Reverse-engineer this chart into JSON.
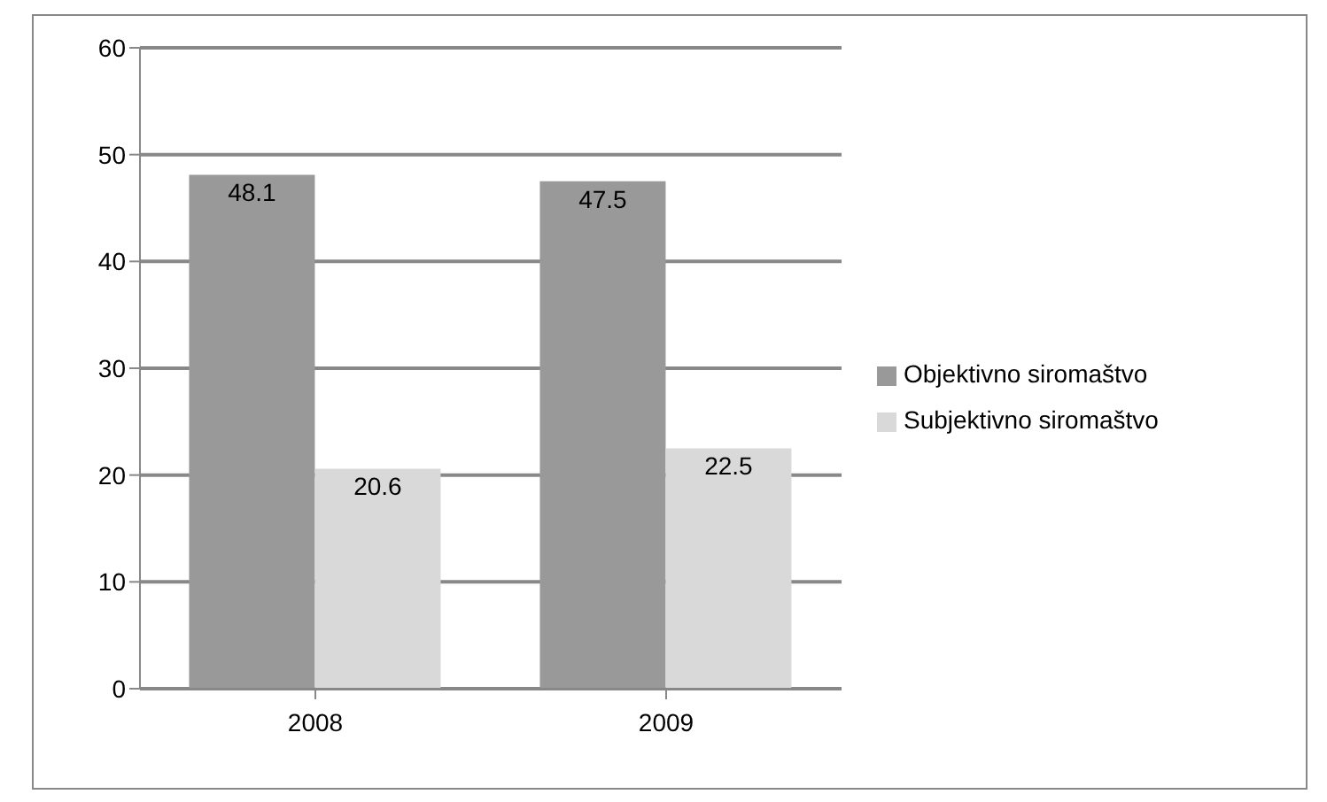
{
  "chart_data": {
    "type": "bar",
    "categories": [
      "2008",
      "2009"
    ],
    "series": [
      {
        "name": "Objektivno siromaštvo",
        "color": "#999999",
        "values": [
          48.1,
          47.5
        ]
      },
      {
        "name": "Subjektivno siromaštvo",
        "color": "#d9d9d9",
        "values": [
          20.6,
          22.5
        ]
      }
    ],
    "ylim": [
      0,
      60
    ],
    "yticks": [
      0,
      10,
      20,
      30,
      40,
      50,
      60
    ],
    "grid": "y",
    "legend": "right",
    "data_labels": true
  }
}
